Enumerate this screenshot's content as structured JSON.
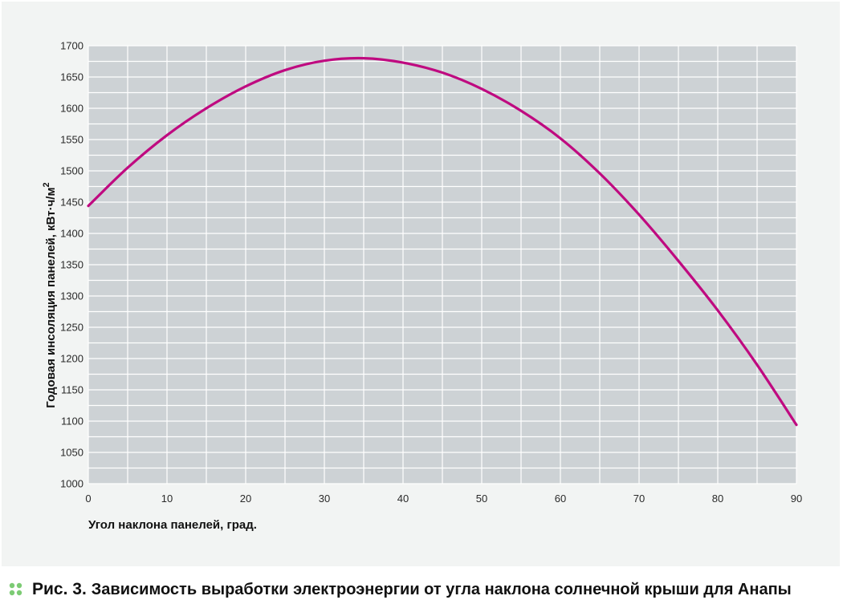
{
  "chart_data": {
    "type": "line",
    "title": "",
    "xlabel": "Угол наклона панелей, град.",
    "ylabel_main": "Годовая инсоляция панелей, кВт·ч/м",
    "ylabel_sup": "2",
    "xlim": [
      0,
      90
    ],
    "ylim": [
      1000,
      1700
    ],
    "x_ticks": [
      0,
      10,
      20,
      30,
      40,
      50,
      60,
      70,
      80,
      90
    ],
    "y_ticks": [
      1000,
      1050,
      1100,
      1150,
      1200,
      1250,
      1300,
      1350,
      1400,
      1450,
      1500,
      1550,
      1600,
      1650,
      1700
    ],
    "grid": true,
    "series": [
      {
        "color": "#bf0a80",
        "x": [
          0,
          5,
          10,
          15,
          20,
          25,
          30,
          35,
          40,
          45,
          50,
          55,
          60,
          65,
          70,
          75,
          80,
          85,
          90
        ],
        "y": [
          1444,
          1505,
          1557,
          1600,
          1635,
          1661,
          1676,
          1680,
          1673,
          1657,
          1631,
          1596,
          1552,
          1496,
          1430,
          1356,
          1277,
          1190,
          1094
        ]
      }
    ]
  },
  "colors": {
    "plot_background": "#cdd2d5",
    "grid": "#ffffff",
    "panel_background": "#f2f4f3",
    "accent_dots": "#7ccb74"
  },
  "caption": {
    "label": "Рис. 3.",
    "text": "Зависимость выработки электроэнергии от угла наклона солнечной крыши для Анапы"
  }
}
